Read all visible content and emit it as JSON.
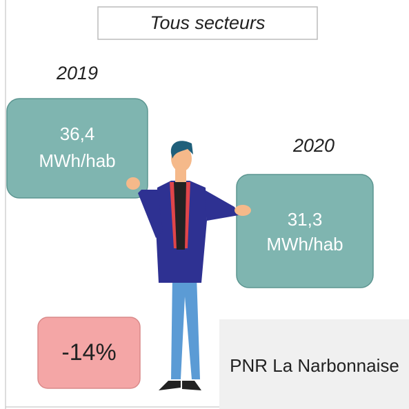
{
  "title": "Tous secteurs",
  "panels": [
    {
      "year": "2019",
      "value": "36,4",
      "unit": "MWh/hab"
    },
    {
      "year": "2020",
      "value": "31,3",
      "unit": "MWh/hab"
    }
  ],
  "change": "-14%",
  "territory": "PNR La Narbonnaise"
}
